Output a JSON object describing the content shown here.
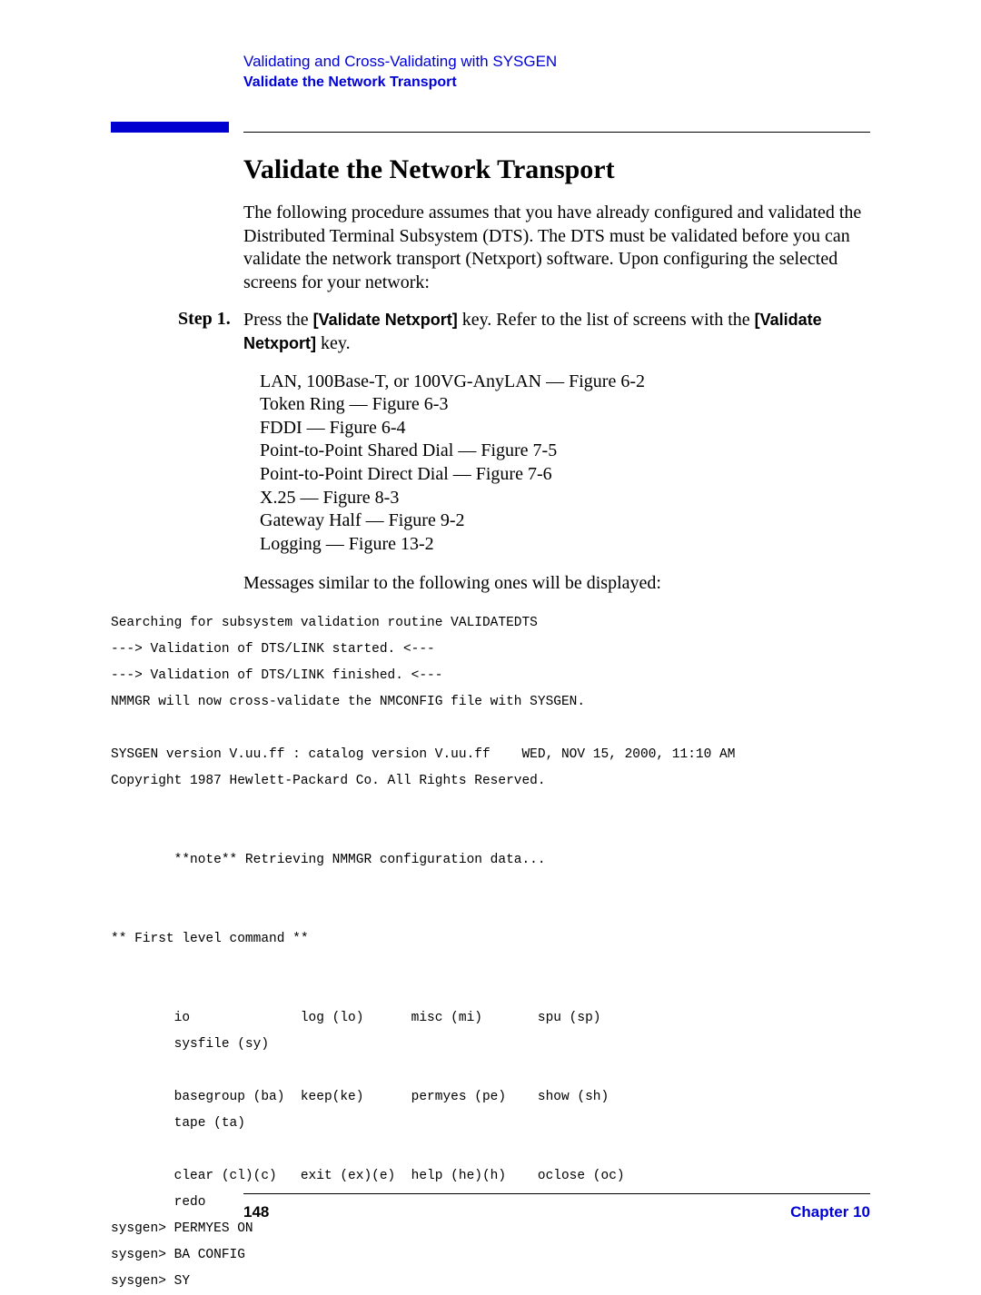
{
  "header": {
    "chapter_title": "Validating and Cross-Validating with SYSGEN",
    "section_title": "Validate the Network Transport"
  },
  "title": "Validate the Network Transport",
  "intro": "The following procedure assumes that you have already configured and validated the Distributed Terminal Subsystem (DTS). The DTS must be validated before you can validate the network transport (Netxport) software. Upon configuring the selected screens for your network:",
  "step": {
    "label": "Step 1.",
    "pre1": "Press the ",
    "key1": "[Validate Netxport]",
    "mid1": " key. Refer to the list of screens with the ",
    "key2": "[Validate Netxport]",
    "post1": " key."
  },
  "figures": [
    "LAN, 100Base-T, or 100VG-AnyLAN — Figure 6-2",
    "Token Ring — Figure 6-3",
    "FDDI — Figure 6-4",
    "Point-to-Point Shared Dial — Figure 7-5",
    "Point-to-Point Direct Dial — Figure 7-6",
    "X.25 — Figure 8-3",
    "Gateway Half — Figure 9-2",
    "Logging — Figure 13-2"
  ],
  "msg_intro": "Messages similar to the following ones will be displayed:",
  "terminal": "Searching for subsystem validation routine VALIDATEDTS\n---> Validation of DTS/LINK started. <---\n---> Validation of DTS/LINK finished. <---\nNMMGR will now cross-validate the NMCONFIG file with SYSGEN.\n\nSYSGEN version V.uu.ff : catalog version V.uu.ff    WED, NOV 15, 2000, 11:10 AM\nCopyright 1987 Hewlett-Packard Co. All Rights Reserved.\n\n\n        **note** Retrieving NMMGR configuration data...\n\n\n** First level command **\n\n\n        io              log (lo)      misc (mi)       spu (sp)\n        sysfile (sy)\n\n        basegroup (ba)  keep(ke)      permyes (pe)    show (sh)\n        tape (ta)\n\n        clear (cl)(c)   exit (ex)(e)  help (he)(h)    oclose (oc)\n        redo\nsysgen> PERMYES ON\nsysgen> BA CONFIG\nsysgen> SY",
  "footer": {
    "page_number": "148",
    "chapter": "Chapter 10"
  }
}
